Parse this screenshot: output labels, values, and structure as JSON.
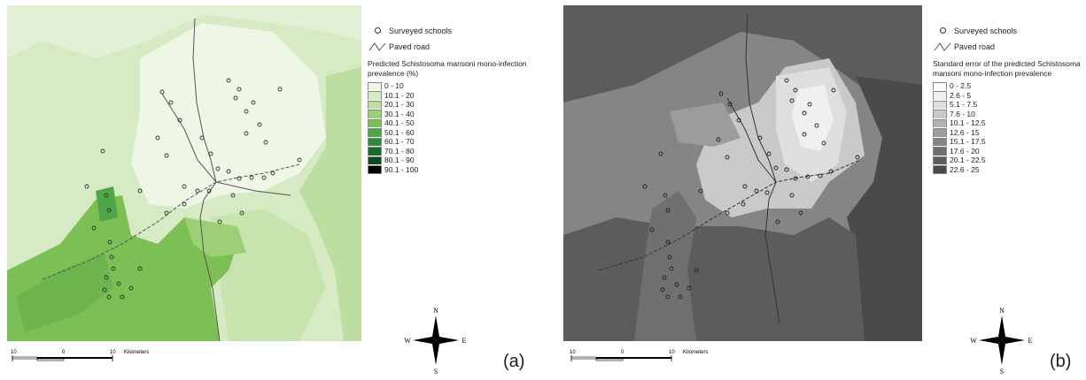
{
  "panel_a": {
    "label": "(a)",
    "legend": {
      "schools_label": "Surveyed schools",
      "road_label": "Paved road",
      "title": "Predicted Schistosoma mansoni mono-infection prevalence  (%)",
      "classes": [
        {
          "label": "0 - 10",
          "color": "#eef6e6"
        },
        {
          "label": "10.1 - 20",
          "color": "#d6eac4"
        },
        {
          "label": "20.1 - 30",
          "color": "#bcdea0"
        },
        {
          "label": "30.1 - 40",
          "color": "#9dcf78"
        },
        {
          "label": "40.1 - 50",
          "color": "#7cbf55"
        },
        {
          "label": "50.1 - 60",
          "color": "#4fa64a"
        },
        {
          "label": "60.1 - 70",
          "color": "#2f8c3a"
        },
        {
          "label": "70.1 - 80",
          "color": "#1d6b2a"
        },
        {
          "label": "80.1 - 90",
          "color": "#0f4a1a"
        },
        {
          "label": "90.1 - 100",
          "color": "#000000"
        }
      ]
    },
    "scale": {
      "left": "10",
      "mid": "0",
      "right": "10",
      "unit": "Kilometers"
    },
    "compass": {
      "n": "N",
      "s": "S",
      "e": "E",
      "w": "W"
    }
  },
  "panel_b": {
    "label": "(b)",
    "legend": {
      "schools_label": "Surveyed schools",
      "road_label": "Paved road",
      "title": "Standard error of the predicted Schistosoma mansoni mono-infection prevalence",
      "classes": [
        {
          "label": "0 - 2.5",
          "color": "#ffffff"
        },
        {
          "label": "2.6 - 5",
          "color": "#f0f0f0"
        },
        {
          "label": "5.1 - 7.5",
          "color": "#dedede"
        },
        {
          "label": "7.6 - 10",
          "color": "#c9c9c9"
        },
        {
          "label": "10.1 - 12.5",
          "color": "#b2b2b2"
        },
        {
          "label": "12.6 - 15",
          "color": "#9c9c9c"
        },
        {
          "label": "15.1 - 17.5",
          "color": "#858585"
        },
        {
          "label": "17.6 - 20",
          "color": "#707070"
        },
        {
          "label": "20.1 - 22.5",
          "color": "#5c5c5c"
        },
        {
          "label": "22.6 - 25",
          "color": "#4a4a4a"
        }
      ]
    },
    "scale": {
      "left": "10",
      "mid": "0",
      "right": "10",
      "unit": "Kilometers"
    },
    "compass": {
      "n": "N",
      "s": "S",
      "e": "E",
      "w": "W"
    }
  }
}
